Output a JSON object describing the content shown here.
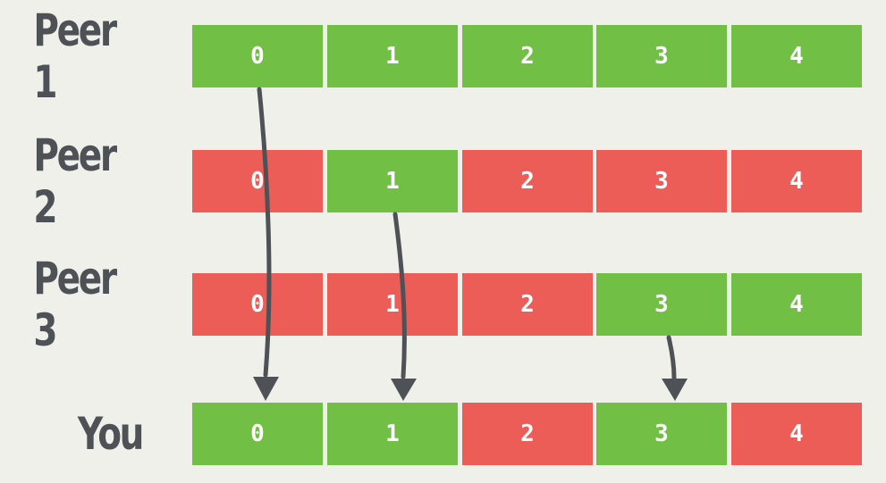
{
  "colors": {
    "have": "#71bf44",
    "missing": "#ec5d57",
    "arrow": "#4e5257",
    "background": "#f0f0eb"
  },
  "rows": [
    {
      "label": "Peer 1",
      "pieces": [
        {
          "index": "0",
          "status": "have"
        },
        {
          "index": "1",
          "status": "have"
        },
        {
          "index": "2",
          "status": "have"
        },
        {
          "index": "3",
          "status": "have"
        },
        {
          "index": "4",
          "status": "have"
        }
      ]
    },
    {
      "label": "Peer 2",
      "pieces": [
        {
          "index": "0",
          "status": "missing"
        },
        {
          "index": "1",
          "status": "have"
        },
        {
          "index": "2",
          "status": "missing"
        },
        {
          "index": "3",
          "status": "missing"
        },
        {
          "index": "4",
          "status": "missing"
        }
      ]
    },
    {
      "label": "Peer 3",
      "pieces": [
        {
          "index": "0",
          "status": "missing"
        },
        {
          "index": "1",
          "status": "missing"
        },
        {
          "index": "2",
          "status": "missing"
        },
        {
          "index": "3",
          "status": "have"
        },
        {
          "index": "4",
          "status": "have"
        }
      ]
    },
    {
      "label": "You",
      "pieces": [
        {
          "index": "0",
          "status": "have"
        },
        {
          "index": "1",
          "status": "have"
        },
        {
          "index": "2",
          "status": "missing"
        },
        {
          "index": "3",
          "status": "have"
        },
        {
          "index": "4",
          "status": "missing"
        }
      ]
    }
  ],
  "transfers": [
    {
      "from": "Peer 1",
      "piece": "0",
      "to": "You"
    },
    {
      "from": "Peer 2",
      "piece": "1",
      "to": "You"
    },
    {
      "from": "Peer 3",
      "piece": "3",
      "to": "You"
    }
  ]
}
